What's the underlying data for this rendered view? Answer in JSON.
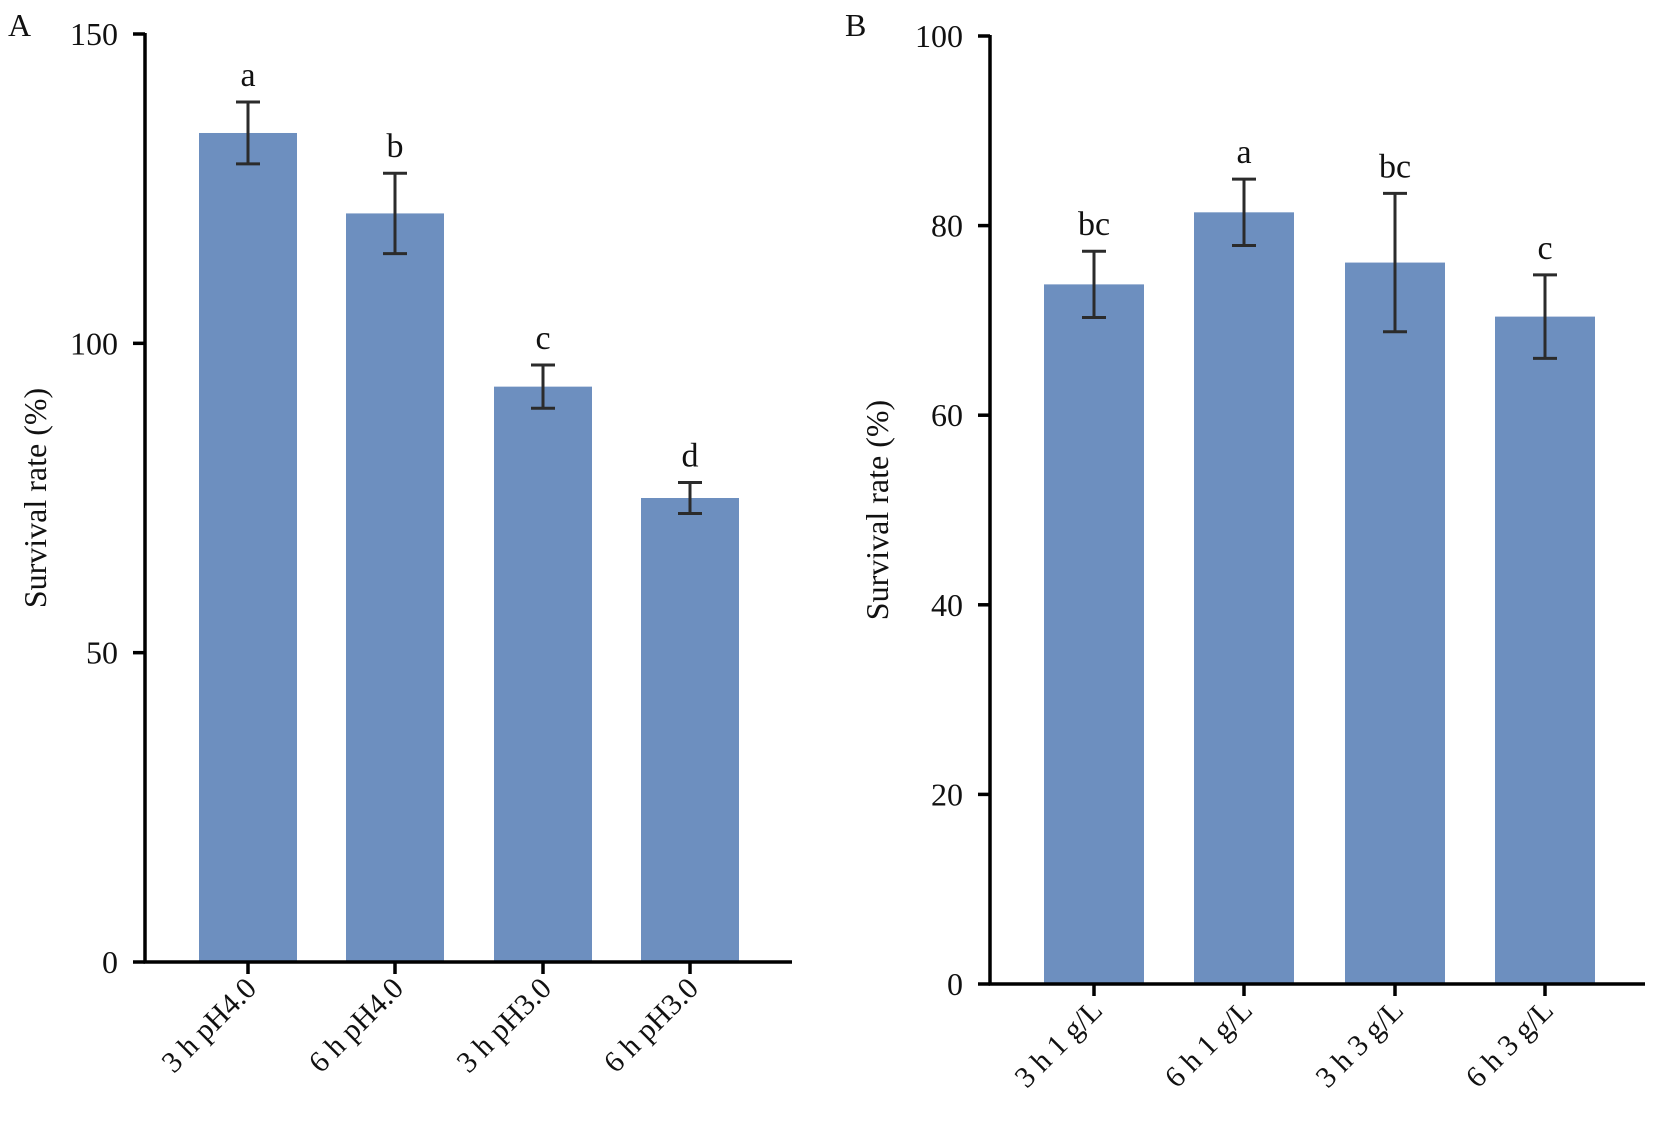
{
  "chart_data": [
    {
      "panel": "A",
      "type": "bar",
      "categories": [
        "3 h pH4.0",
        "6 h pH4.0",
        "3 h pH3.0",
        "6 h pH3.0"
      ],
      "values": [
        134,
        121,
        93,
        75
      ],
      "errors": [
        5,
        6.5,
        3.5,
        2.5
      ],
      "significance": [
        "a",
        "b",
        "c",
        "d"
      ],
      "ylabel": "Survival rate (%)",
      "xlabel": "",
      "ylim": [
        0,
        150
      ],
      "yticks": [
        0,
        50,
        100,
        150
      ],
      "ytick_labels": [
        "0",
        "50",
        "100",
        "150"
      ],
      "bar_color": "#6d8fbf",
      "grid": false
    },
    {
      "panel": "B",
      "type": "bar",
      "categories": [
        "3 h 1 g/L",
        "6 h 1 g/L",
        "3 h 3 g/L",
        "6 h 3 g/L"
      ],
      "values": [
        73.8,
        81.4,
        76.1,
        70.4
      ],
      "errors": [
        3.5,
        3.5,
        7.3,
        4.4
      ],
      "significance": [
        "bc",
        "a",
        "bc",
        "c"
      ],
      "ylabel": "Survival rate (%)",
      "xlabel": "",
      "ylim": [
        0,
        100
      ],
      "yticks": [
        0,
        20,
        40,
        60,
        80,
        100
      ],
      "ytick_labels": [
        "0",
        "20",
        "40",
        "60",
        "80",
        "100"
      ],
      "bar_color": "#6d8fbf",
      "grid": false
    }
  ]
}
